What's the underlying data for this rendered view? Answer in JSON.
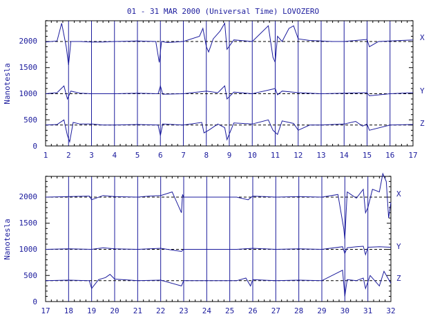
{
  "title": "01 - 31 MAR 2000 (Universal Time) LOVOZERO",
  "chart_data": [
    {
      "type": "line",
      "ylabel": "Nanotesla",
      "ylim": [
        0,
        2400
      ],
      "yticks": [
        0,
        500,
        1000,
        1500,
        2000
      ],
      "xlim": [
        1,
        17
      ],
      "xticks": [
        1,
        2,
        3,
        4,
        5,
        6,
        7,
        8,
        9,
        10,
        11,
        12,
        13,
        14,
        15,
        16,
        17
      ],
      "baselines": {
        "X": 2000,
        "Y": 1000,
        "Z": 400
      },
      "series": [
        {
          "name": "X",
          "x": [
            1,
            1.5,
            1.7,
            1.9,
            2.0,
            2.1,
            2.5,
            3,
            3.5,
            4,
            5,
            5.8,
            5.95,
            6.05,
            6.3,
            7,
            7.7,
            7.85,
            8,
            8.1,
            8.3,
            8.6,
            8.8,
            8.9,
            9.2,
            10,
            10.7,
            10.9,
            11,
            11.1,
            11.3,
            11.6,
            11.8,
            12,
            12.5,
            13,
            13.5,
            14,
            14.5,
            15,
            15.1,
            15.5,
            16,
            17
          ],
          "y": [
            1990,
            2010,
            2350,
            1900,
            1550,
            2000,
            2000,
            1990,
            1990,
            2000,
            2010,
            2000,
            1600,
            2000,
            1980,
            2000,
            2100,
            2250,
            1900,
            1800,
            2050,
            2200,
            2350,
            1850,
            2030,
            2000,
            2300,
            1700,
            1600,
            2100,
            2000,
            2250,
            2300,
            2050,
            2020,
            2010,
            2000,
            2000,
            2020,
            2040,
            1900,
            2000,
            2010,
            2030
          ]
        },
        {
          "name": "Y",
          "x": [
            1,
            1.5,
            1.8,
            1.95,
            2.1,
            2.5,
            3,
            4,
            5,
            5.9,
            6.0,
            6.1,
            7,
            8,
            8.5,
            8.8,
            8.9,
            9.2,
            10,
            11,
            11.1,
            11.3,
            12,
            13,
            14,
            15,
            15.1,
            16,
            17
          ],
          "y": [
            1000,
            1020,
            1150,
            900,
            1050,
            1010,
            1000,
            1000,
            1010,
            1000,
            1150,
            990,
            1000,
            1050,
            1020,
            1150,
            900,
            1030,
            1000,
            1100,
            980,
            1050,
            1020,
            1000,
            1010,
            1020,
            960,
            1000,
            1020
          ]
        },
        {
          "name": "Z",
          "x": [
            1,
            1.5,
            1.8,
            1.95,
            2.05,
            2.2,
            2.5,
            3,
            3.5,
            4,
            5,
            5.9,
            6.0,
            6.1,
            7,
            7.8,
            7.9,
            8.1,
            8.5,
            8.8,
            8.9,
            9.2,
            10,
            10.7,
            10.9,
            11.1,
            11.3,
            11.8,
            12,
            12.5,
            13,
            13.5,
            14,
            14.5,
            14.8,
            15,
            15.1,
            16,
            17
          ],
          "y": [
            400,
            410,
            500,
            200,
            80,
            450,
            420,
            420,
            400,
            400,
            410,
            400,
            200,
            420,
            400,
            450,
            250,
            300,
            420,
            350,
            120,
            440,
            420,
            500,
            300,
            220,
            480,
            430,
            300,
            400,
            400,
            410,
            420,
            470,
            380,
            420,
            300,
            400,
            410
          ]
        }
      ]
    },
    {
      "type": "line",
      "ylabel": "Nanotesla",
      "ylim": [
        0,
        2400
      ],
      "yticks": [
        0,
        500,
        1000,
        1500,
        2000
      ],
      "xlim": [
        17,
        32
      ],
      "xticks": [
        17,
        18,
        19,
        20,
        21,
        22,
        23,
        24,
        25,
        26,
        27,
        28,
        29,
        30,
        31,
        32
      ],
      "baselines": {
        "X": 2000,
        "Y": 1000,
        "Z": 400
      },
      "series": [
        {
          "name": "X",
          "x": [
            17,
            18,
            18.9,
            19,
            19.5,
            20,
            21,
            21.5,
            22,
            22.5,
            22.9,
            22.95,
            23,
            25.3,
            25.8,
            26,
            27,
            28,
            29,
            29.7,
            29.95,
            30,
            30.1,
            30.5,
            30.8,
            30.9,
            31,
            31.2,
            31.5,
            31.65,
            31.8,
            31.9,
            32
          ],
          "y": [
            2000,
            2010,
            2020,
            1950,
            2030,
            2010,
            2000,
            2020,
            2030,
            2100,
            1700,
            2050,
            2000,
            2000,
            1950,
            2020,
            2000,
            2010,
            2000,
            2050,
            1400,
            1200,
            2100,
            1980,
            2150,
            1700,
            1800,
            2150,
            2100,
            2450,
            2300,
            1600,
            1900
          ]
        },
        {
          "name": "Y",
          "x": [
            17,
            18,
            19,
            19.5,
            20,
            21,
            22,
            22.9,
            23,
            25.3,
            26,
            27,
            28,
            29,
            29.9,
            30,
            30.1,
            30.5,
            30.8,
            30.9,
            31,
            31.5,
            32
          ],
          "y": [
            1000,
            1010,
            1000,
            1030,
            1010,
            1000,
            1020,
            960,
            1000,
            1000,
            1020,
            1000,
            1010,
            1000,
            1050,
            920,
            1030,
            1050,
            1060,
            900,
            1040,
            1050,
            1040
          ]
        },
        {
          "name": "Z",
          "x": [
            17,
            18,
            18.9,
            19,
            19.3,
            19.6,
            19.8,
            20,
            21,
            22,
            22.9,
            23,
            25.3,
            25.7,
            25.9,
            26,
            27,
            28,
            29,
            29.9,
            30,
            30.1,
            30.5,
            30.8,
            30.9,
            31.1,
            31.5,
            31.7,
            32
          ],
          "y": [
            400,
            410,
            400,
            250,
            420,
            460,
            520,
            430,
            400,
            410,
            300,
            400,
            400,
            450,
            300,
            420,
            400,
            410,
            400,
            600,
            100,
            420,
            400,
            450,
            250,
            500,
            300,
            580,
            350
          ]
        }
      ]
    }
  ],
  "panels": [
    {
      "labels": {
        "ylabel": "Nanotesla",
        "y0": "0",
        "y500": "500",
        "y1000": "1000",
        "y1500": "1500",
        "y2000": "2000",
        "X": "X",
        "Y": "Y",
        "Z": "Z"
      }
    },
    {
      "labels": {
        "ylabel": "Nanotesla",
        "y0": "0",
        "y500": "500",
        "y1000": "1000",
        "y1500": "1500",
        "y2000": "2000",
        "X": "X",
        "Y": "Y",
        "Z": "Z"
      }
    }
  ],
  "colors": {
    "trace": "#1a1a9c",
    "frame": "#000000"
  }
}
